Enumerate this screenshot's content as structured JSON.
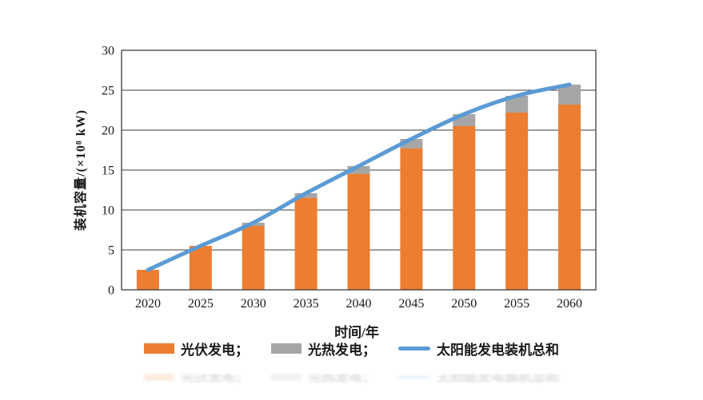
{
  "figure": {
    "background": "#ffffff"
  },
  "chart_data": {
    "type": "bar",
    "subtype": "stacked-bars-with-total-line",
    "title": "",
    "categories": [
      "2020",
      "2025",
      "2030",
      "2035",
      "2040",
      "2045",
      "2050",
      "2055",
      "2060"
    ],
    "series": [
      {
        "name": "光伏发电",
        "type": "bar",
        "stacked": true,
        "color": "#ED7D31",
        "values": [
          2.5,
          5.5,
          8.0,
          11.5,
          14.5,
          17.7,
          20.5,
          22.2,
          23.2
        ]
      },
      {
        "name": "光热发电",
        "type": "bar",
        "stacked": true,
        "color": "#A6A6A6",
        "values": [
          0,
          0,
          0.4,
          0.6,
          1.0,
          1.2,
          1.5,
          2.1,
          2.5
        ]
      },
      {
        "name": "太阳能发电装机总和",
        "type": "line",
        "color": "#5B9BD5",
        "values": [
          2.5,
          5.5,
          8.4,
          12.1,
          15.5,
          18.9,
          22.0,
          24.3,
          25.7
        ]
      }
    ],
    "xlabel": "时间/年",
    "ylabel": "装机容量/(×10⁸ kW)",
    "ylim": [
      0,
      30
    ],
    "yticks": [
      0,
      5,
      10,
      15,
      20,
      25,
      30
    ],
    "grid": true,
    "legend_position": "bottom"
  },
  "legend": {
    "items": [
      {
        "label": "光伏发电；",
        "swatch": "bar",
        "color": "#ED7D31"
      },
      {
        "label": "光热发电；",
        "swatch": "bar",
        "color": "#A6A6A6"
      },
      {
        "label": "太阳能发电装机总和",
        "swatch": "line",
        "color": "#5B9BD5"
      }
    ]
  },
  "colors": {
    "pv_bar": "#ED7D31",
    "csp_bar": "#A6A6A6",
    "total_line": "#5B9BD5",
    "axis": "#3d3d3d",
    "text": "#1a1a1a"
  }
}
